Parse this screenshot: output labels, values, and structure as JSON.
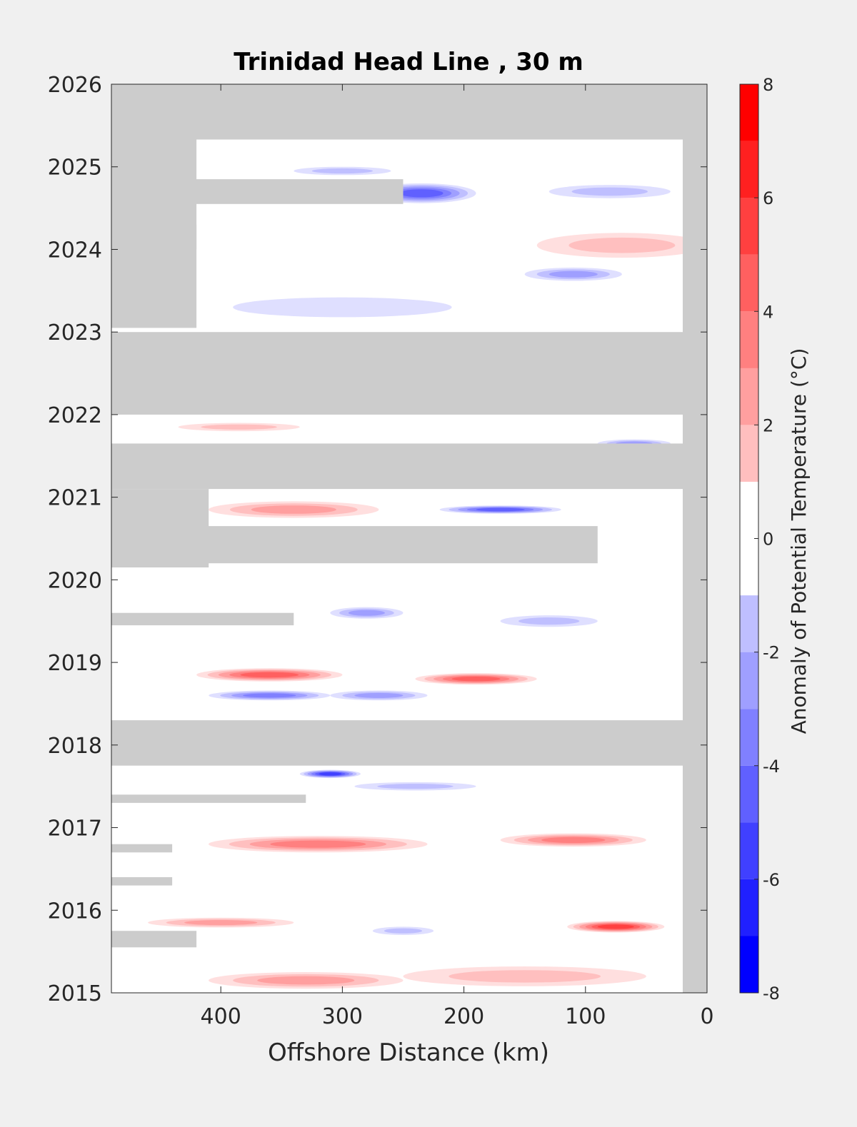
{
  "chart_data": {
    "type": "heatmap",
    "title": "Trinidad Head Line , 30 m",
    "xlabel": "Offshore Distance (km)",
    "ylabel": "",
    "x_reversed": true,
    "xlim": [
      490,
      0
    ],
    "ylim": [
      2015,
      2026
    ],
    "x_ticks": [
      400,
      300,
      200,
      100,
      0
    ],
    "y_ticks": [
      2015,
      2016,
      2017,
      2018,
      2019,
      2020,
      2021,
      2022,
      2023,
      2024,
      2025,
      2026
    ],
    "colorbar": {
      "label": "Anomaly of Potential Temperature (°C)",
      "range": [
        -8,
        8
      ],
      "step": 1,
      "ticks": [
        -8,
        -6,
        -4,
        -2,
        0,
        2,
        4,
        6,
        8
      ]
    },
    "missing_color": "#cccccc",
    "grid": false,
    "no_data_bands": [
      {
        "x": [
          490,
          0
        ],
        "y": [
          2025.33,
          2026
        ]
      },
      {
        "x": [
          490,
          420
        ],
        "y": [
          2023.05,
          2025.33
        ]
      },
      {
        "x": [
          490,
          0
        ],
        "y": [
          2022.0,
          2023.0
        ]
      },
      {
        "x": [
          490,
          0
        ],
        "y": [
          2021.1,
          2021.65
        ]
      },
      {
        "x": [
          490,
          410
        ],
        "y": [
          2020.15,
          2021.1
        ]
      },
      {
        "x": [
          490,
          90
        ],
        "y": [
          2020.2,
          2020.65
        ]
      },
      {
        "x": [
          490,
          0
        ],
        "y": [
          2017.75,
          2018.3
        ]
      },
      {
        "x": [
          490,
          340
        ],
        "y": [
          2019.45,
          2019.6
        ]
      },
      {
        "x": [
          490,
          330
        ],
        "y": [
          2017.3,
          2017.4
        ]
      },
      {
        "x": [
          490,
          440
        ],
        "y": [
          2016.7,
          2016.8
        ]
      },
      {
        "x": [
          490,
          440
        ],
        "y": [
          2016.3,
          2016.4
        ]
      },
      {
        "x": [
          490,
          420
        ],
        "y": [
          2015.55,
          2015.75
        ]
      },
      {
        "x": [
          490,
          420
        ],
        "y": [
          2024.0,
          2024.3
        ]
      },
      {
        "x": [
          490,
          250
        ],
        "y": [
          2024.55,
          2024.85
        ]
      },
      {
        "x": [
          20,
          0
        ],
        "y": [
          2015,
          2026
        ]
      }
    ],
    "anomalies": [
      {
        "x": 235,
        "y": 2024.68,
        "value": -5,
        "rx": 45,
        "ry": 0.12
      },
      {
        "x": 300,
        "y": 2024.95,
        "value": -2,
        "rx": 40,
        "ry": 0.05
      },
      {
        "x": 80,
        "y": 2024.7,
        "value": -2,
        "rx": 50,
        "ry": 0.08
      },
      {
        "x": 70,
        "y": 2024.05,
        "value": 2,
        "rx": 70,
        "ry": 0.15
      },
      {
        "x": 110,
        "y": 2023.7,
        "value": -3,
        "rx": 40,
        "ry": 0.08
      },
      {
        "x": 300,
        "y": 2023.3,
        "value": -1,
        "rx": 90,
        "ry": 0.12
      },
      {
        "x": 385,
        "y": 2021.85,
        "value": 2,
        "rx": 50,
        "ry": 0.05
      },
      {
        "x": 340,
        "y": 2020.85,
        "value": 3,
        "rx": 70,
        "ry": 0.1
      },
      {
        "x": 170,
        "y": 2020.85,
        "value": -5,
        "rx": 50,
        "ry": 0.05
      },
      {
        "x": 60,
        "y": 2021.65,
        "value": -3,
        "rx": 30,
        "ry": 0.05
      },
      {
        "x": 280,
        "y": 2019.6,
        "value": -3,
        "rx": 30,
        "ry": 0.07
      },
      {
        "x": 130,
        "y": 2019.5,
        "value": -2,
        "rx": 40,
        "ry": 0.07
      },
      {
        "x": 360,
        "y": 2018.85,
        "value": 5,
        "rx": 60,
        "ry": 0.08
      },
      {
        "x": 190,
        "y": 2018.8,
        "value": 5,
        "rx": 50,
        "ry": 0.07
      },
      {
        "x": 360,
        "y": 2018.6,
        "value": -4,
        "rx": 50,
        "ry": 0.06
      },
      {
        "x": 270,
        "y": 2018.6,
        "value": -3,
        "rx": 40,
        "ry": 0.06
      },
      {
        "x": 310,
        "y": 2017.65,
        "value": -6,
        "rx": 25,
        "ry": 0.05
      },
      {
        "x": 240,
        "y": 2017.5,
        "value": -2,
        "rx": 50,
        "ry": 0.05
      },
      {
        "x": 320,
        "y": 2016.8,
        "value": 4,
        "rx": 90,
        "ry": 0.1
      },
      {
        "x": 110,
        "y": 2016.85,
        "value": 4,
        "rx": 60,
        "ry": 0.08
      },
      {
        "x": 400,
        "y": 2015.85,
        "value": 3,
        "rx": 60,
        "ry": 0.06
      },
      {
        "x": 75,
        "y": 2015.8,
        "value": 6,
        "rx": 40,
        "ry": 0.07
      },
      {
        "x": 250,
        "y": 2015.75,
        "value": -2,
        "rx": 25,
        "ry": 0.05
      },
      {
        "x": 330,
        "y": 2015.15,
        "value": 3,
        "rx": 80,
        "ry": 0.1
      },
      {
        "x": 150,
        "y": 2015.2,
        "value": 2,
        "rx": 100,
        "ry": 0.12
      }
    ]
  }
}
